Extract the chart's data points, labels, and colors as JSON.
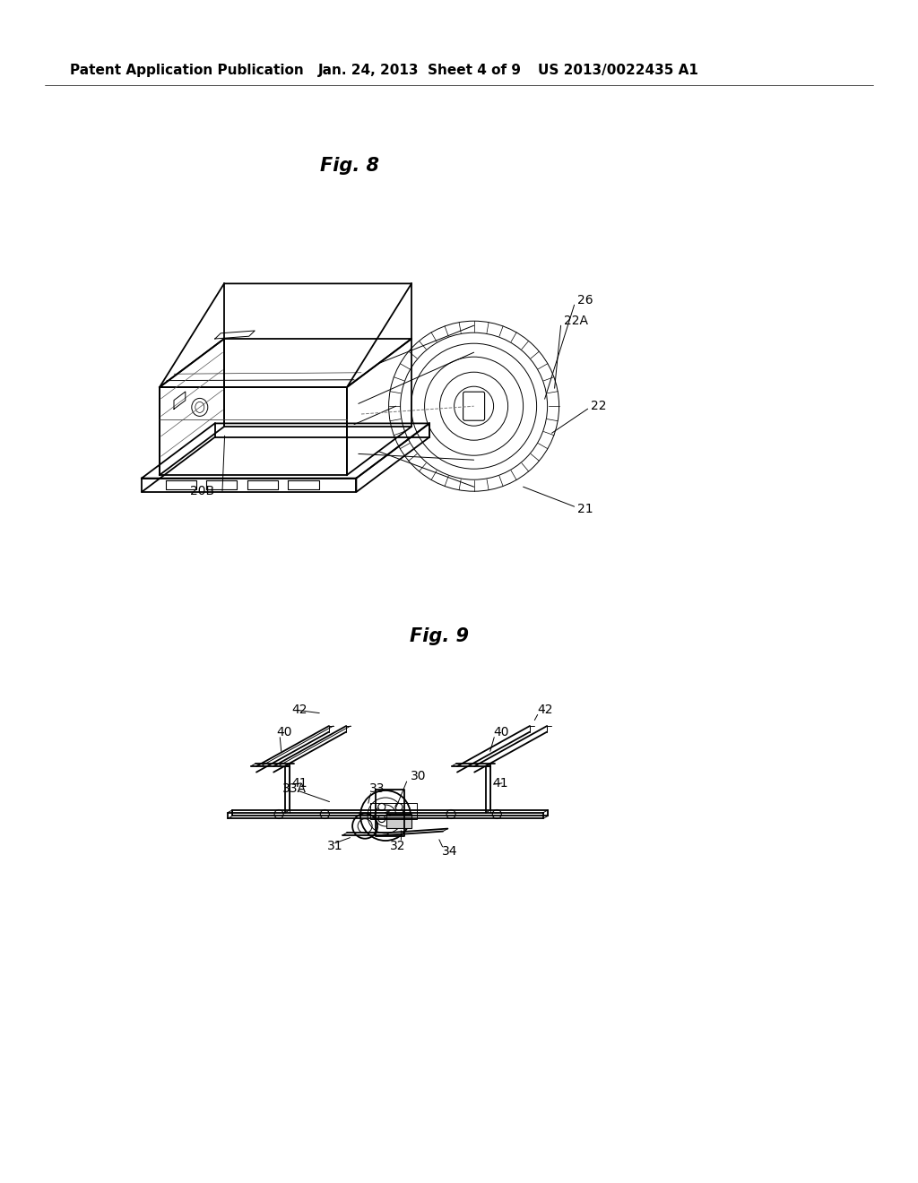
{
  "bg_color": "#ffffff",
  "header_left": "Patent Application Publication",
  "header_mid": "Jan. 24, 2013  Sheet 4 of 9",
  "header_right": "US 2013/0022435 A1",
  "fig8_label": "Fig. 8",
  "fig9_label": "Fig. 9",
  "line_color": "#000000",
  "header_fontsize": 11,
  "fig_label_fontsize": 15,
  "callout_fontsize": 10
}
